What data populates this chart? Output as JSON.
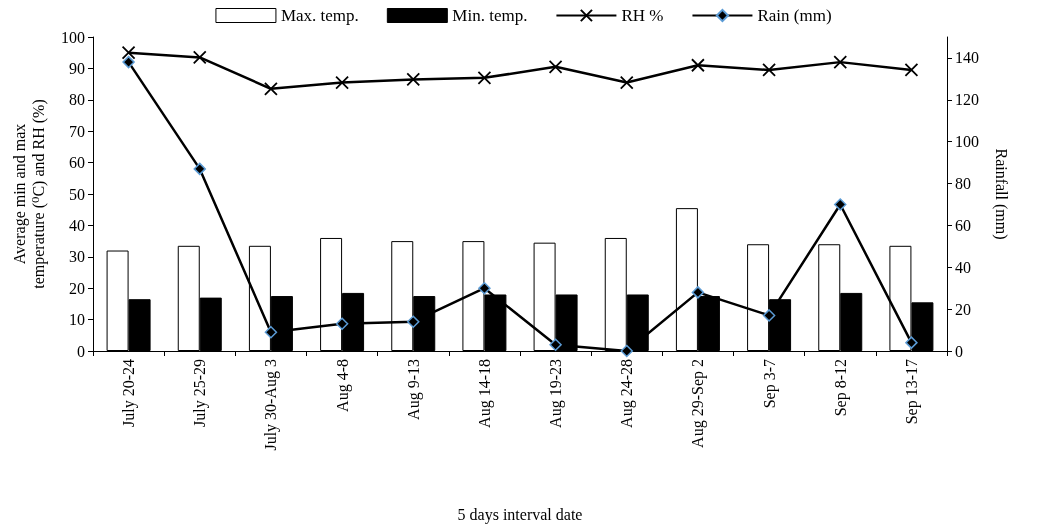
{
  "chart_data": {
    "type": "bar",
    "xlabel": "5 days interval date",
    "ylabel": "Average min and max temperature (⁰C) and RH (%)",
    "y2label": "Rainfall (mm)",
    "categories": [
      "July 20-24",
      "July 25-29",
      "July 30-Aug 3",
      "Aug 4-8",
      "Aug 9-13",
      "Aug 14-18",
      "Aug 19-23",
      "Aug 24-28",
      "Aug 29-Sep 2",
      "Sep 3-7",
      "Sep 8-12",
      "Sep 13-17"
    ],
    "series": [
      {
        "name": "Max. temp.",
        "color": "#ffffff",
        "values": [
          32,
          33.5,
          33.5,
          36,
          35,
          35,
          34.5,
          36,
          45.5,
          34,
          34,
          33.5
        ]
      },
      {
        "name": "Min. temp.",
        "color": "#000000",
        "values": [
          16.5,
          17,
          17.5,
          18.5,
          17.5,
          18,
          18,
          18,
          17.5,
          16.5,
          18.5,
          15.5
        ]
      },
      {
        "name": "RH %",
        "type": "line",
        "color": "#000000",
        "marker": "cross",
        "values": [
          95,
          93.5,
          83.5,
          85.5,
          86.5,
          87,
          90.5,
          85.5,
          91,
          89.5,
          92,
          89.5
        ]
      },
      {
        "name": "Rain (mm)",
        "type": "line",
        "color": "#000000",
        "marker": "diamond",
        "axis": "y2",
        "values": [
          138,
          87,
          9,
          13,
          14,
          30,
          3,
          0,
          28,
          17,
          70,
          4
        ]
      }
    ],
    "ylim": [
      0,
      100
    ],
    "yticks": [
      0,
      10,
      20,
      30,
      40,
      50,
      60,
      70,
      80,
      90,
      100
    ],
    "y2lim": [
      0,
      150
    ],
    "y2ticks": [
      0,
      20,
      40,
      60,
      80,
      100,
      120,
      140
    ],
    "grid": false,
    "legend": "top"
  }
}
